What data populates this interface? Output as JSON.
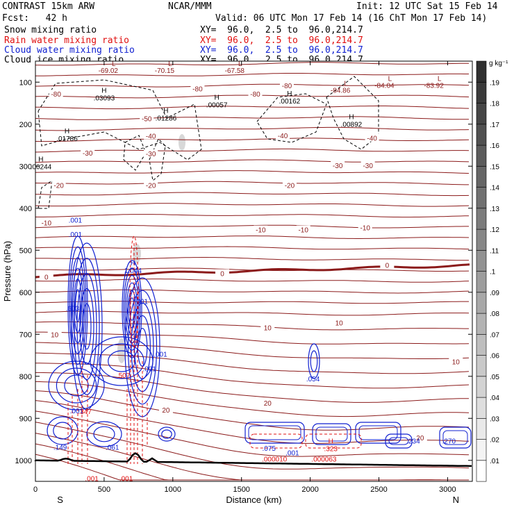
{
  "header": {
    "model": "CONTRAST 15km ARW",
    "center": "NCAR/MMM",
    "init": "Init: 12 UTC Sat 15 Feb 14",
    "fcst": "Fcst:   42 h",
    "valid": "Valid: 06 UTC Mon 17 Feb 14 (16 ChT Mon 17 Feb 14)"
  },
  "fields": [
    {
      "name": "Snow mixing ratio",
      "xy": "XY=  96.0,  2.5 to  96.0,214.7",
      "color": "#000000"
    },
    {
      "name": "Rain water mixing ratio",
      "xy": "XY=  96.0,  2.5 to  96.0,214.7",
      "color": "#e01010"
    },
    {
      "name": "Cloud water mixing ratio",
      "xy": "XY=  96.0,  2.5 to  96.0,214.7",
      "color": "#1020d0"
    },
    {
      "name": "Cloud ice mixing ratio",
      "xy": "XY=  96.0,  2.5 to  96.0,214.7",
      "color": "#000000"
    }
  ],
  "chart_data": {
    "type": "contour",
    "xlabel": "Distance (km)",
    "ylabel": "Pressure (hPa)",
    "x_range": [
      0,
      3180
    ],
    "y_range": [
      50,
      1050
    ],
    "x_ticks": [
      "0",
      "500",
      "1000",
      "1500",
      "2000",
      "2500",
      "3000"
    ],
    "x_tick_values": [
      0,
      500,
      1000,
      1500,
      2000,
      2500,
      3000
    ],
    "y_ticks": [
      "100",
      "200",
      "300",
      "400",
      "500",
      "600",
      "700",
      "800",
      "900",
      "1000"
    ],
    "y_tick_values": [
      100,
      200,
      300,
      400,
      500,
      600,
      700,
      800,
      900,
      1000
    ],
    "x_end_labels": {
      "left": "S",
      "right": "N"
    },
    "colorbar": {
      "unit": "g kg⁻¹",
      "ticks": [
        ".01",
        ".02",
        ".03",
        ".04",
        ".05",
        ".06",
        ".07",
        ".08",
        ".09",
        ".1",
        ".11",
        ".12",
        ".13",
        ".14",
        ".15",
        ".16",
        ".17",
        ".18",
        ".19"
      ],
      "levels": 20,
      "color_low": "#ffffff",
      "color_high": "#303030"
    },
    "temperature_contour_color": "#8b1a1a",
    "temperature_labels": [
      {
        "t": "-80",
        "x": 150,
        "p": 128
      },
      {
        "t": "-80",
        "x": 1180,
        "p": 115
      },
      {
        "t": "-80",
        "x": 1830,
        "p": 108
      },
      {
        "t": "-80",
        "x": 1600,
        "p": 128
      },
      {
        "t": "-50",
        "x": 810,
        "p": 186
      },
      {
        "t": "-40",
        "x": 840,
        "p": 228
      },
      {
        "t": "-40",
        "x": 1800,
        "p": 227
      },
      {
        "t": "-40",
        "x": 2450,
        "p": 233
      },
      {
        "t": "-30",
        "x": 380,
        "p": 268
      },
      {
        "t": "-30",
        "x": 840,
        "p": 270
      },
      {
        "t": "-30",
        "x": 2200,
        "p": 298
      },
      {
        "t": "-30",
        "x": 2420,
        "p": 298
      },
      {
        "t": "-20",
        "x": 170,
        "p": 345
      },
      {
        "t": "-20",
        "x": 840,
        "p": 345
      },
      {
        "t": "-20",
        "x": 1850,
        "p": 345
      },
      {
        "t": "-10",
        "x": 80,
        "p": 434
      },
      {
        "t": "-10",
        "x": 1640,
        "p": 451
      },
      {
        "t": "-10",
        "x": 1950,
        "p": 451
      },
      {
        "t": "-10",
        "x": 2400,
        "p": 446
      },
      {
        "t": "0",
        "x": 80,
        "p": 563
      },
      {
        "t": "0",
        "x": 1360,
        "p": 555
      },
      {
        "t": "0",
        "x": 2560,
        "p": 535
      },
      {
        "t": "10",
        "x": 140,
        "p": 700
      },
      {
        "t": "10",
        "x": 1690,
        "p": 684
      },
      {
        "t": "10",
        "x": 2210,
        "p": 672
      },
      {
        "t": "10",
        "x": 3060,
        "p": 765
      },
      {
        "t": "20",
        "x": 950,
        "p": 880
      },
      {
        "t": "20",
        "x": 1690,
        "p": 863
      },
      {
        "t": "20",
        "x": 2800,
        "p": 946
      }
    ],
    "min_labels": [
      {
        "text": "-69.02",
        "x": 530,
        "p": 78
      },
      {
        "text": "-70.15",
        "x": 940,
        "p": 78
      },
      {
        "text": "-67.58",
        "x": 1450,
        "p": 78
      },
      {
        "text": "-84.04",
        "x": 2540,
        "p": 114
      },
      {
        "text": "-83.92",
        "x": 2900,
        "p": 114
      },
      {
        "text": "-84.86",
        "x": 2220,
        "p": 125
      }
    ],
    "snow_maxima": [
      {
        "text": ".03093",
        "x": 500,
        "p": 143
      },
      {
        "text": ".00057",
        "x": 1320,
        "p": 160
      },
      {
        "text": ".00162",
        "x": 1850,
        "p": 151
      },
      {
        "text": ".01286",
        "x": 950,
        "p": 191
      },
      {
        "text": ".00892",
        "x": 2300,
        "p": 206
      },
      {
        "text": ".01786",
        "x": 230,
        "p": 240
      },
      {
        "text": ".00244",
        "x": 40,
        "p": 307
      }
    ],
    "cloud_water_maxima": [
      {
        "text": ".001",
        "x": 290,
        "p": 434
      },
      {
        "text": ".001",
        "x": 290,
        "p": 468
      },
      {
        "text": ".603",
        "x": 270,
        "p": 644
      },
      {
        "text": "1.044",
        "x": 710,
        "p": 554
      },
      {
        "text": ".001",
        "x": 770,
        "p": 628
      },
      {
        "text": ".001",
        "x": 910,
        "p": 753
      },
      {
        "text": ".001",
        "x": 830,
        "p": 788
      },
      {
        "text": ".054",
        "x": 2020,
        "p": 812
      },
      {
        "text": ".001",
        "x": 300,
        "p": 888
      },
      {
        "text": ".149",
        "x": 180,
        "p": 975
      },
      {
        "text": ".061",
        "x": 560,
        "p": 975
      },
      {
        "text": ".075",
        "x": 1700,
        "p": 977
      },
      {
        "text": ".001",
        "x": 1870,
        "p": 988
      },
      {
        "text": ".234",
        "x": 2750,
        "p": 960
      },
      {
        "text": ".270",
        "x": 3010,
        "p": 960
      }
    ],
    "rain_maxima": [
      {
        "text": ".347",
        "x": 360,
        "p": 890
      },
      {
        "text": ".507",
        "x": 640,
        "p": 804
      },
      {
        "text": ".323",
        "x": 2150,
        "p": 978
      },
      {
        "text": ".000010",
        "x": 1740,
        "p": 1003
      },
      {
        "text": ".000063",
        "x": 2100,
        "p": 1003
      },
      {
        "text": ".001",
        "x": 410,
        "p": 1049
      },
      {
        "text": ".001",
        "x": 660,
        "p": 1049
      }
    ]
  }
}
